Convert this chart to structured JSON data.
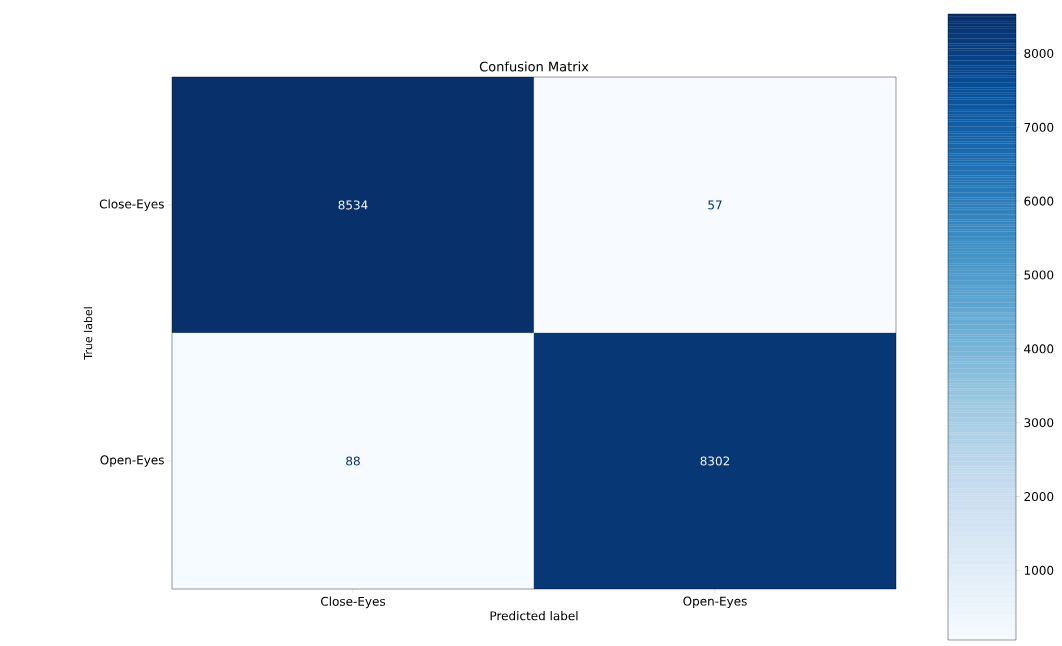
{
  "chart_data": {
    "type": "heatmap",
    "title": "Confusion Matrix",
    "xlabel": "Predicted label",
    "ylabel": "True label",
    "categories": [
      "Close-Eyes",
      "Open-Eyes"
    ],
    "y_categories": [
      "Close-Eyes",
      "Open-Eyes"
    ],
    "cells": [
      [
        8534,
        57
      ],
      [
        88,
        8302
      ]
    ],
    "data_labels": true,
    "clim": [
      57,
      8534
    ],
    "cticks": [
      1000,
      2000,
      3000,
      4000,
      5000,
      6000,
      7000,
      8000
    ]
  }
}
